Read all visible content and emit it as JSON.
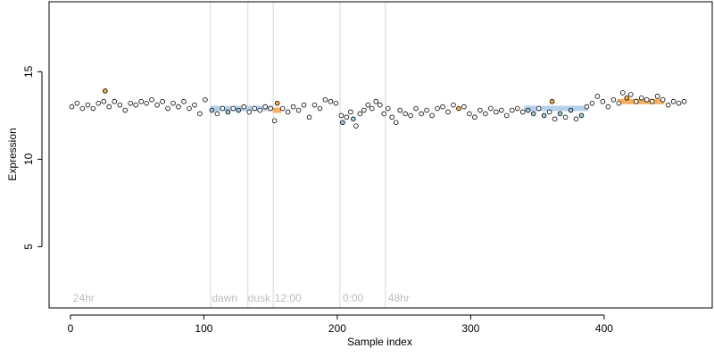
{
  "chart_data": {
    "type": "scatter",
    "xlabel": "Sample index",
    "ylabel": "Expression",
    "xlim": [
      -16,
      481
    ],
    "ylim": [
      1.5,
      19
    ],
    "x_ticks": [
      0,
      100,
      200,
      300,
      400
    ],
    "y_ticks": [
      5,
      10,
      15
    ],
    "grid": false,
    "legend": "none",
    "colors": {
      "point_stroke": "#000000",
      "point_default": "#ffffff",
      "point_orange": "#f5b041",
      "point_blue": "#9ecae1",
      "segment_orange": "#f5a142",
      "segment_blue": "#a8c8e8",
      "vline": "#d9d9d9",
      "annotation": "#bdbdbd"
    },
    "vertical_lines": [
      {
        "x": 105
      },
      {
        "x": 133
      },
      {
        "x": 152
      },
      {
        "x": 202
      },
      {
        "x": 236
      }
    ],
    "annotations": [
      {
        "x": 2,
        "label": "24hr"
      },
      {
        "x": 106,
        "label": "dawn"
      },
      {
        "x": 133,
        "label": "dusk"
      },
      {
        "x": 153,
        "label": "12:00"
      },
      {
        "x": 204,
        "label": "0:00"
      },
      {
        "x": 238,
        "label": "48hr"
      }
    ],
    "segments": [
      {
        "x0": 0,
        "x1": 105,
        "y": 13.1,
        "color": "none"
      },
      {
        "x0": 105,
        "x1": 152,
        "y": 12.9,
        "color": "blue"
      },
      {
        "x0": 152,
        "x1": 158,
        "y": 12.8,
        "color": "orange"
      },
      {
        "x0": 158,
        "x1": 202,
        "y": 12.9,
        "color": "none"
      },
      {
        "x0": 202,
        "x1": 236,
        "y": 12.6,
        "color": "none"
      },
      {
        "x0": 236,
        "x1": 340,
        "y": 12.8,
        "color": "none"
      },
      {
        "x0": 340,
        "x1": 388,
        "y": 12.9,
        "color": "blue"
      },
      {
        "x0": 388,
        "x1": 410,
        "y": 13.1,
        "color": "none"
      },
      {
        "x0": 410,
        "x1": 445,
        "y": 13.3,
        "color": "orange"
      },
      {
        "x0": 445,
        "x1": 462,
        "y": 13.2,
        "color": "none"
      }
    ],
    "series": [
      {
        "points": [
          {
            "x": 1,
            "y": 13.0,
            "c": "w"
          },
          {
            "x": 5,
            "y": 13.2,
            "c": "w"
          },
          {
            "x": 9,
            "y": 12.9,
            "c": "w"
          },
          {
            "x": 13,
            "y": 13.1,
            "c": "w"
          },
          {
            "x": 17,
            "y": 12.9,
            "c": "w"
          },
          {
            "x": 21,
            "y": 13.2,
            "c": "w"
          },
          {
            "x": 25,
            "y": 13.3,
            "c": "w"
          },
          {
            "x": 26,
            "y": 13.9,
            "c": "o"
          },
          {
            "x": 29,
            "y": 13.0,
            "c": "w"
          },
          {
            "x": 33,
            "y": 13.3,
            "c": "w"
          },
          {
            "x": 37,
            "y": 13.1,
            "c": "w"
          },
          {
            "x": 41,
            "y": 12.8,
            "c": "w"
          },
          {
            "x": 45,
            "y": 13.2,
            "c": "w"
          },
          {
            "x": 49,
            "y": 13.1,
            "c": "w"
          },
          {
            "x": 53,
            "y": 13.3,
            "c": "w"
          },
          {
            "x": 57,
            "y": 13.2,
            "c": "w"
          },
          {
            "x": 61,
            "y": 13.4,
            "c": "w"
          },
          {
            "x": 65,
            "y": 13.1,
            "c": "w"
          },
          {
            "x": 69,
            "y": 13.3,
            "c": "w"
          },
          {
            "x": 73,
            "y": 12.9,
            "c": "w"
          },
          {
            "x": 77,
            "y": 13.2,
            "c": "w"
          },
          {
            "x": 81,
            "y": 13.0,
            "c": "w"
          },
          {
            "x": 85,
            "y": 13.3,
            "c": "w"
          },
          {
            "x": 89,
            "y": 12.9,
            "c": "w"
          },
          {
            "x": 93,
            "y": 13.1,
            "c": "w"
          },
          {
            "x": 97,
            "y": 12.6,
            "c": "w"
          },
          {
            "x": 101,
            "y": 13.4,
            "c": "w"
          },
          {
            "x": 106,
            "y": 12.8,
            "c": "b"
          },
          {
            "x": 110,
            "y": 12.6,
            "c": "w"
          },
          {
            "x": 114,
            "y": 12.9,
            "c": "w"
          },
          {
            "x": 118,
            "y": 12.7,
            "c": "b"
          },
          {
            "x": 122,
            "y": 12.9,
            "c": "w"
          },
          {
            "x": 126,
            "y": 12.8,
            "c": "b"
          },
          {
            "x": 130,
            "y": 13.0,
            "c": "w"
          },
          {
            "x": 134,
            "y": 12.7,
            "c": "w"
          },
          {
            "x": 138,
            "y": 12.9,
            "c": "w"
          },
          {
            "x": 142,
            "y": 12.8,
            "c": "w"
          },
          {
            "x": 146,
            "y": 13.0,
            "c": "w"
          },
          {
            "x": 150,
            "y": 12.9,
            "c": "w"
          },
          {
            "x": 153,
            "y": 12.2,
            "c": "w"
          },
          {
            "x": 155,
            "y": 13.2,
            "c": "o"
          },
          {
            "x": 159,
            "y": 12.9,
            "c": "w"
          },
          {
            "x": 163,
            "y": 12.7,
            "c": "w"
          },
          {
            "x": 167,
            "y": 13.0,
            "c": "w"
          },
          {
            "x": 171,
            "y": 12.8,
            "c": "w"
          },
          {
            "x": 175,
            "y": 13.1,
            "c": "w"
          },
          {
            "x": 179,
            "y": 12.4,
            "c": "w"
          },
          {
            "x": 183,
            "y": 13.1,
            "c": "w"
          },
          {
            "x": 187,
            "y": 12.9,
            "c": "w"
          },
          {
            "x": 191,
            "y": 13.4,
            "c": "w"
          },
          {
            "x": 195,
            "y": 13.3,
            "c": "w"
          },
          {
            "x": 199,
            "y": 13.2,
            "c": "w"
          },
          {
            "x": 203,
            "y": 12.5,
            "c": "w"
          },
          {
            "x": 204,
            "y": 12.1,
            "c": "b"
          },
          {
            "x": 207,
            "y": 12.4,
            "c": "w"
          },
          {
            "x": 210,
            "y": 12.7,
            "c": "w"
          },
          {
            "x": 212,
            "y": 12.3,
            "c": "b"
          },
          {
            "x": 214,
            "y": 11.9,
            "c": "w"
          },
          {
            "x": 217,
            "y": 12.6,
            "c": "w"
          },
          {
            "x": 220,
            "y": 12.8,
            "c": "w"
          },
          {
            "x": 223,
            "y": 13.1,
            "c": "w"
          },
          {
            "x": 226,
            "y": 12.9,
            "c": "w"
          },
          {
            "x": 229,
            "y": 13.3,
            "c": "w"
          },
          {
            "x": 232,
            "y": 13.1,
            "c": "w"
          },
          {
            "x": 235,
            "y": 12.6,
            "c": "w"
          },
          {
            "x": 238,
            "y": 12.9,
            "c": "w"
          },
          {
            "x": 241,
            "y": 12.4,
            "c": "w"
          },
          {
            "x": 244,
            "y": 12.1,
            "c": "w"
          },
          {
            "x": 247,
            "y": 12.8,
            "c": "w"
          },
          {
            "x": 251,
            "y": 12.6,
            "c": "w"
          },
          {
            "x": 255,
            "y": 12.5,
            "c": "w"
          },
          {
            "x": 259,
            "y": 12.9,
            "c": "w"
          },
          {
            "x": 263,
            "y": 12.6,
            "c": "w"
          },
          {
            "x": 267,
            "y": 12.8,
            "c": "w"
          },
          {
            "x": 271,
            "y": 12.5,
            "c": "w"
          },
          {
            "x": 275,
            "y": 12.9,
            "c": "w"
          },
          {
            "x": 279,
            "y": 13.0,
            "c": "w"
          },
          {
            "x": 283,
            "y": 12.7,
            "c": "w"
          },
          {
            "x": 287,
            "y": 13.1,
            "c": "w"
          },
          {
            "x": 291,
            "y": 12.9,
            "c": "o"
          },
          {
            "x": 295,
            "y": 13.0,
            "c": "w"
          },
          {
            "x": 299,
            "y": 12.6,
            "c": "w"
          },
          {
            "x": 303,
            "y": 12.4,
            "c": "w"
          },
          {
            "x": 307,
            "y": 12.8,
            "c": "w"
          },
          {
            "x": 311,
            "y": 12.6,
            "c": "w"
          },
          {
            "x": 315,
            "y": 12.9,
            "c": "w"
          },
          {
            "x": 319,
            "y": 12.7,
            "c": "w"
          },
          {
            "x": 323,
            "y": 12.8,
            "c": "w"
          },
          {
            "x": 327,
            "y": 12.5,
            "c": "w"
          },
          {
            "x": 331,
            "y": 12.8,
            "c": "w"
          },
          {
            "x": 335,
            "y": 12.9,
            "c": "w"
          },
          {
            "x": 339,
            "y": 12.7,
            "c": "w"
          },
          {
            "x": 343,
            "y": 12.8,
            "c": "b"
          },
          {
            "x": 347,
            "y": 12.6,
            "c": "b"
          },
          {
            "x": 351,
            "y": 12.9,
            "c": "w"
          },
          {
            "x": 355,
            "y": 12.5,
            "c": "b"
          },
          {
            "x": 359,
            "y": 12.7,
            "c": "w"
          },
          {
            "x": 361,
            "y": 13.3,
            "c": "o"
          },
          {
            "x": 363,
            "y": 12.3,
            "c": "w"
          },
          {
            "x": 367,
            "y": 12.6,
            "c": "b"
          },
          {
            "x": 371,
            "y": 12.4,
            "c": "w"
          },
          {
            "x": 375,
            "y": 12.8,
            "c": "b"
          },
          {
            "x": 379,
            "y": 12.3,
            "c": "w"
          },
          {
            "x": 383,
            "y": 12.5,
            "c": "b"
          },
          {
            "x": 387,
            "y": 13.0,
            "c": "w"
          },
          {
            "x": 391,
            "y": 13.2,
            "c": "w"
          },
          {
            "x": 395,
            "y": 13.6,
            "c": "w"
          },
          {
            "x": 399,
            "y": 13.3,
            "c": "w"
          },
          {
            "x": 403,
            "y": 13.0,
            "c": "w"
          },
          {
            "x": 407,
            "y": 13.4,
            "c": "w"
          },
          {
            "x": 411,
            "y": 13.2,
            "c": "w"
          },
          {
            "x": 414,
            "y": 13.8,
            "c": "w"
          },
          {
            "x": 417,
            "y": 13.5,
            "c": "o"
          },
          {
            "x": 420,
            "y": 13.7,
            "c": "w"
          },
          {
            "x": 424,
            "y": 13.3,
            "c": "w"
          },
          {
            "x": 428,
            "y": 13.5,
            "c": "w"
          },
          {
            "x": 432,
            "y": 13.4,
            "c": "w"
          },
          {
            "x": 436,
            "y": 13.3,
            "c": "w"
          },
          {
            "x": 440,
            "y": 13.6,
            "c": "w"
          },
          {
            "x": 444,
            "y": 13.4,
            "c": "w"
          },
          {
            "x": 448,
            "y": 13.1,
            "c": "w"
          },
          {
            "x": 452,
            "y": 13.3,
            "c": "w"
          },
          {
            "x": 456,
            "y": 13.2,
            "c": "w"
          },
          {
            "x": 460,
            "y": 13.3,
            "c": "w"
          }
        ]
      }
    ]
  }
}
